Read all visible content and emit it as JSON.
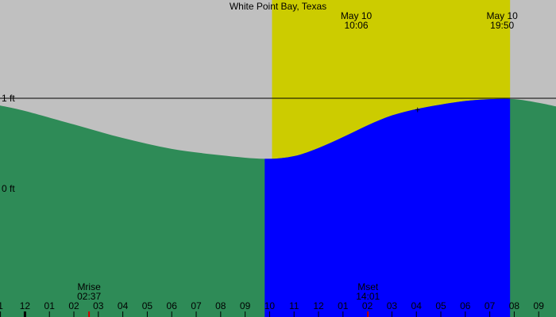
{
  "chart_data": {
    "type": "area",
    "title": "White Point Bay, Texas",
    "y_unit": "ft",
    "y_ticks": [
      {
        "value": 1,
        "label": "1 ft"
      },
      {
        "value": 0,
        "label": "0 ft"
      }
    ],
    "y_reference_line": 1,
    "x_hours": {
      "start": 23.0,
      "end": 33.8
    },
    "x_tick_labels": [
      "1",
      "12",
      "01",
      "02",
      "03",
      "04",
      "05",
      "06",
      "07",
      "08",
      "09",
      "10",
      "11",
      "12",
      "01",
      "02",
      "03",
      "04",
      "05",
      "06",
      "07",
      "08",
      "09"
    ],
    "x_tick_hours": [
      23,
      24,
      25,
      26,
      27,
      28,
      29,
      30,
      31,
      32,
      33,
      34,
      35,
      36,
      37,
      38,
      39,
      40,
      41,
      42,
      43,
      44,
      45
    ],
    "x_range_hours": [
      22.98,
      45.6
    ],
    "sun_events": [
      {
        "date": "May 10",
        "time": "10:06",
        "hour": 10.1
      },
      {
        "date": "May 10",
        "time": "19:50",
        "hour": 19.83
      }
    ],
    "moon_events": [
      {
        "label": "Mrise",
        "time": "02:37",
        "hour": 26.62
      },
      {
        "label": "Mset",
        "time": "14:01",
        "hour": 38.02
      }
    ],
    "tide_curve": [
      {
        "hour": 23.0,
        "ft": 0.92
      },
      {
        "hour": 24.0,
        "ft": 0.86
      },
      {
        "hour": 26.0,
        "ft": 0.71
      },
      {
        "hour": 28.0,
        "ft": 0.56
      },
      {
        "hour": 30.0,
        "ft": 0.44
      },
      {
        "hour": 32.0,
        "ft": 0.37
      },
      {
        "hour": 33.8,
        "ft": 0.33
      },
      {
        "hour": 35.0,
        "ft": 0.36
      },
      {
        "hour": 36.0,
        "ft": 0.45
      },
      {
        "hour": 37.0,
        "ft": 0.57
      },
      {
        "hour": 38.0,
        "ft": 0.7
      },
      {
        "hour": 39.0,
        "ft": 0.81
      },
      {
        "hour": 40.0,
        "ft": 0.88
      },
      {
        "hour": 41.0,
        "ft": 0.93
      },
      {
        "hour": 42.0,
        "ft": 0.97
      },
      {
        "hour": 43.0,
        "ft": 0.99
      },
      {
        "hour": 44.0,
        "ft": 0.99
      },
      {
        "hour": 45.0,
        "ft": 0.95
      },
      {
        "hour": 45.6,
        "ft": 0.91
      }
    ],
    "current_marker": {
      "hour": 40.05,
      "ft": 0.88,
      "symbol": "+"
    },
    "colors": {
      "background": "#c0c0c0",
      "daylight": "#cccc00",
      "tide_night": "#2e8b57",
      "tide_daylight": "#0000ff",
      "reference_line": "#000000",
      "moon_tick": "#cc0000"
    }
  }
}
